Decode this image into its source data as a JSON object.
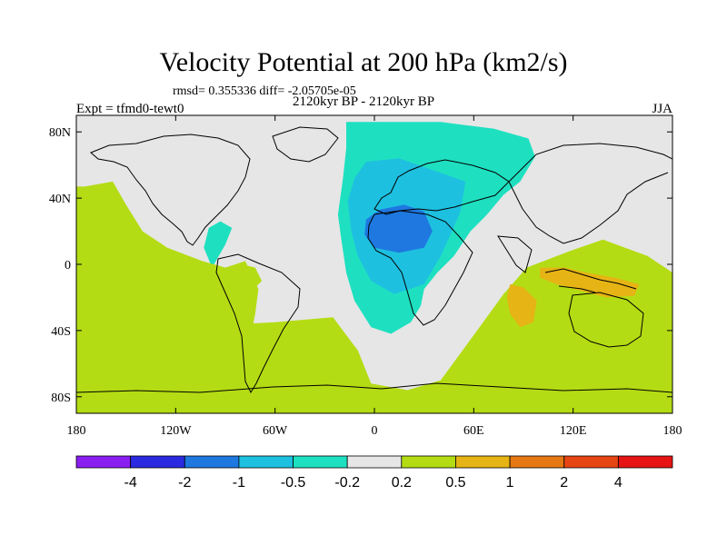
{
  "chart_data": {
    "type": "heatmap",
    "title": "Velocity Potential at 200 hPa (km2/s)",
    "stats": "rmsd= 0.355336 diff= -2.05705e-05",
    "period": "2120kyr BP - 2120kyr BP",
    "experiment": "Expt = tfmd0-tewt0",
    "season": "JJA",
    "xlim": [
      -180,
      180
    ],
    "ylim": [
      -90,
      90
    ],
    "x_ticks": [
      {
        "value": -180,
        "label": "180"
      },
      {
        "value": -120,
        "label": "120W"
      },
      {
        "value": -60,
        "label": "60W"
      },
      {
        "value": 0,
        "label": "0"
      },
      {
        "value": 60,
        "label": "60E"
      },
      {
        "value": 120,
        "label": "120E"
      },
      {
        "value": 180,
        "label": "180"
      }
    ],
    "y_ticks": [
      {
        "value": 80,
        "label": "80N"
      },
      {
        "value": 40,
        "label": "40N"
      },
      {
        "value": 0,
        "label": "0"
      },
      {
        "value": -40,
        "label": "40S"
      },
      {
        "value": -80,
        "label": "80S"
      }
    ],
    "colorbar": {
      "levels": [
        "-4",
        "-2",
        "-1",
        "-0.5",
        "-0.2",
        "0.2",
        "0.5",
        "1",
        "2",
        "4"
      ],
      "colors": [
        "#8a1ef0",
        "#2a2ae0",
        "#1e78e0",
        "#1ec0e0",
        "#1ee0c0",
        "#e6e6e6",
        "#b4dc14",
        "#e6b414",
        "#e67814",
        "#e64614",
        "#e61414"
      ]
    },
    "regions": [
      {
        "name": "negative-region-africa-europe",
        "level": "-0.5 to -0.2",
        "color": "#1ee0c0",
        "outline": [
          [
            -17,
            86
          ],
          [
            40,
            86
          ],
          [
            72,
            82
          ],
          [
            93,
            76
          ],
          [
            97,
            65
          ],
          [
            88,
            50
          ],
          [
            78,
            42
          ],
          [
            68,
            30
          ],
          [
            58,
            20
          ],
          [
            48,
            5
          ],
          [
            38,
            -5
          ],
          [
            30,
            -15
          ],
          [
            28,
            -25
          ],
          [
            22,
            -35
          ],
          [
            10,
            -42
          ],
          [
            -2,
            -38
          ],
          [
            -12,
            -22
          ],
          [
            -17,
            -5
          ],
          [
            -20,
            15
          ],
          [
            -22,
            30
          ],
          [
            -19,
            52
          ],
          [
            -17,
            70
          ]
        ]
      },
      {
        "name": "negative-region-africa-inner",
        "level": "-1 to -0.5",
        "color": "#1ec0e0",
        "outline": [
          [
            -5,
            62
          ],
          [
            15,
            64
          ],
          [
            38,
            56
          ],
          [
            55,
            50
          ],
          [
            52,
            32
          ],
          [
            46,
            18
          ],
          [
            40,
            5
          ],
          [
            30,
            -12
          ],
          [
            12,
            -18
          ],
          [
            -2,
            -10
          ],
          [
            -10,
            5
          ],
          [
            -14,
            20
          ],
          [
            -16,
            38
          ],
          [
            -12,
            52
          ]
        ]
      },
      {
        "name": "negative-region-africa-core",
        "level": "-2 to -1",
        "color": "#1e78e0",
        "outline": [
          [
            -5,
            27
          ],
          [
            3,
            33
          ],
          [
            18,
            36
          ],
          [
            30,
            32
          ],
          [
            35,
            20
          ],
          [
            30,
            10
          ],
          [
            15,
            7
          ],
          [
            0,
            10
          ],
          [
            -6,
            18
          ]
        ]
      },
      {
        "name": "negative-region-central-america",
        "level": "-0.5 to -0.2",
        "color": "#1ee0c0",
        "outline": [
          [
            -100,
            22
          ],
          [
            -93,
            26
          ],
          [
            -86,
            22
          ],
          [
            -90,
            12
          ],
          [
            -98,
            -2
          ],
          [
            -103,
            10
          ]
        ]
      },
      {
        "name": "positive-region-pacific",
        "level": "0.2 to 0.5",
        "color": "#b4dc14",
        "outline": [
          [
            -175,
            47
          ],
          [
            -158,
            50
          ],
          [
            -150,
            36
          ],
          [
            -140,
            20
          ],
          [
            -125,
            10
          ],
          [
            -104,
            2
          ],
          [
            -90,
            -2
          ],
          [
            -78,
            2
          ],
          [
            -70,
            -15
          ],
          [
            -72,
            -30
          ],
          [
            -75,
            -45
          ],
          [
            -80,
            -60
          ],
          [
            -88,
            -62
          ],
          [
            -120,
            -58
          ],
          [
            -150,
            -50
          ],
          [
            -180,
            -42
          ],
          [
            -180,
            47
          ]
        ]
      },
      {
        "name": "positive-region-southern-atlantic",
        "level": "0.2 to 0.5",
        "color": "#b4dc14",
        "outline": [
          [
            -180,
            -35
          ],
          [
            -120,
            -38
          ],
          [
            -60,
            -35
          ],
          [
            -25,
            -32
          ],
          [
            -10,
            -52
          ],
          [
            -2,
            -72
          ],
          [
            20,
            -76
          ],
          [
            40,
            -70
          ],
          [
            62,
            -40
          ],
          [
            78,
            -18
          ],
          [
            92,
            -2
          ],
          [
            118,
            8
          ],
          [
            138,
            15
          ],
          [
            165,
            5
          ],
          [
            180,
            -5
          ],
          [
            180,
            -90
          ],
          [
            -180,
            -90
          ]
        ]
      },
      {
        "name": "positive-region-south-america-small",
        "level": "0.2 to 0.5",
        "color": "#b4dc14",
        "outline": [
          [
            -80,
            0
          ],
          [
            -72,
            -2
          ],
          [
            -68,
            -10
          ],
          [
            -74,
            -16
          ],
          [
            -80,
            -10
          ]
        ]
      },
      {
        "name": "positive-region-maritime-continent",
        "level": "0.5 to 1",
        "color": "#e6b414",
        "outline": [
          [
            100,
            -2
          ],
          [
            115,
            -2
          ],
          [
            128,
            -5
          ],
          [
            145,
            -8
          ],
          [
            160,
            -12
          ],
          [
            157,
            -19
          ],
          [
            140,
            -20
          ],
          [
            125,
            -16
          ],
          [
            110,
            -12
          ],
          [
            100,
            -8
          ]
        ]
      },
      {
        "name": "positive-region-indian-ocean",
        "level": "0.5 to 1",
        "color": "#e6b414",
        "outline": [
          [
            82,
            -12
          ],
          [
            90,
            -14
          ],
          [
            98,
            -22
          ],
          [
            96,
            -35
          ],
          [
            88,
            -38
          ],
          [
            82,
            -30
          ],
          [
            80,
            -20
          ]
        ]
      }
    ]
  }
}
